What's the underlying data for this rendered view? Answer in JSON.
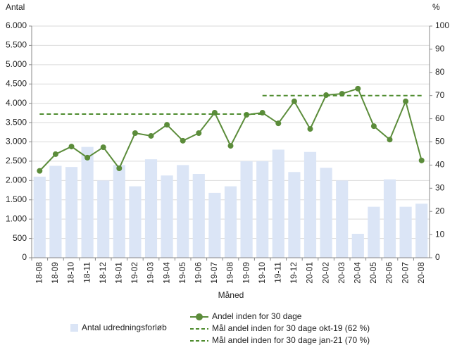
{
  "chart_data": {
    "type": "bar",
    "y_label": "Antal",
    "y2_label": "%",
    "x_label": "Måned",
    "categories": [
      "18-08",
      "18-09",
      "18-10",
      "18-11",
      "18-12",
      "19-01",
      "19-02",
      "19-03",
      "19-04",
      "19-05",
      "19-06",
      "19-07",
      "19-08",
      "19-09",
      "19-10",
      "19-11",
      "19-12",
      "20-01",
      "20-02",
      "20-03",
      "20-04",
      "20-05",
      "20-06",
      "20-07",
      "20-08"
    ],
    "series": [
      {
        "name": "Antal udredningsforløb",
        "type": "bar",
        "axis": "y",
        "color": "#dbe5f6",
        "values": [
          2100,
          2380,
          2350,
          2870,
          2000,
          2400,
          1850,
          2550,
          2130,
          2400,
          2170,
          1680,
          1850,
          2500,
          2500,
          2800,
          2220,
          2740,
          2330,
          2000,
          620,
          1320,
          2030,
          1320,
          1400
        ]
      },
      {
        "name": "Andel inden for 30 dage",
        "type": "line",
        "axis": "y2",
        "color": "#5b8c3a",
        "markers": true,
        "values": [
          37.5,
          44.7,
          48,
          43.2,
          47.7,
          38.6,
          53.8,
          52.6,
          57.4,
          50.5,
          53.8,
          62.6,
          48.3,
          61.7,
          62.6,
          58,
          67.5,
          55.6,
          70.2,
          70.8,
          73,
          56.8,
          51,
          67.5,
          42
        ]
      },
      {
        "name": "Mål andel inden for 30 dage okt-19 (62 %)",
        "type": "line",
        "axis": "y2",
        "color": "#4e8c2e",
        "dashed": true,
        "values": [
          62,
          62,
          62,
          62,
          62,
          62,
          62,
          62,
          62,
          62,
          62,
          62,
          62,
          62,
          62,
          null,
          null,
          null,
          null,
          null,
          null,
          null,
          null,
          null,
          null
        ]
      },
      {
        "name": "Mål andel inden for 30 dage jan-21 (70 %)",
        "type": "line",
        "axis": "y2",
        "color": "#4e8c2e",
        "dashed": true,
        "values": [
          null,
          null,
          null,
          null,
          null,
          null,
          null,
          null,
          null,
          null,
          null,
          null,
          null,
          null,
          70,
          70,
          70,
          70,
          70,
          70,
          70,
          70,
          70,
          70,
          70
        ]
      }
    ],
    "ylim": [
      0,
      6000
    ],
    "yticks": [
      0,
      500,
      {
        "value": 1000,
        "label": "1.000"
      },
      {
        "value": 1500,
        "label": "1.500"
      },
      {
        "value": 2000,
        "label": "2.000"
      },
      {
        "value": 2500,
        "label": "2.500"
      },
      {
        "value": 3000,
        "label": "3.000"
      },
      {
        "value": 3500,
        "label": "3.500"
      },
      {
        "value": 4000,
        "label": "4.000"
      },
      {
        "value": 4500,
        "label": "4.500"
      },
      {
        "value": 5000,
        "label": "5.000"
      },
      {
        "value": 5500,
        "label": "5.500"
      },
      {
        "value": 6000,
        "label": "6.000"
      }
    ],
    "y2lim": [
      0,
      100
    ],
    "y2ticks": [
      0,
      10,
      20,
      30,
      40,
      50,
      60,
      70,
      80,
      90,
      100
    ],
    "grid": true
  }
}
